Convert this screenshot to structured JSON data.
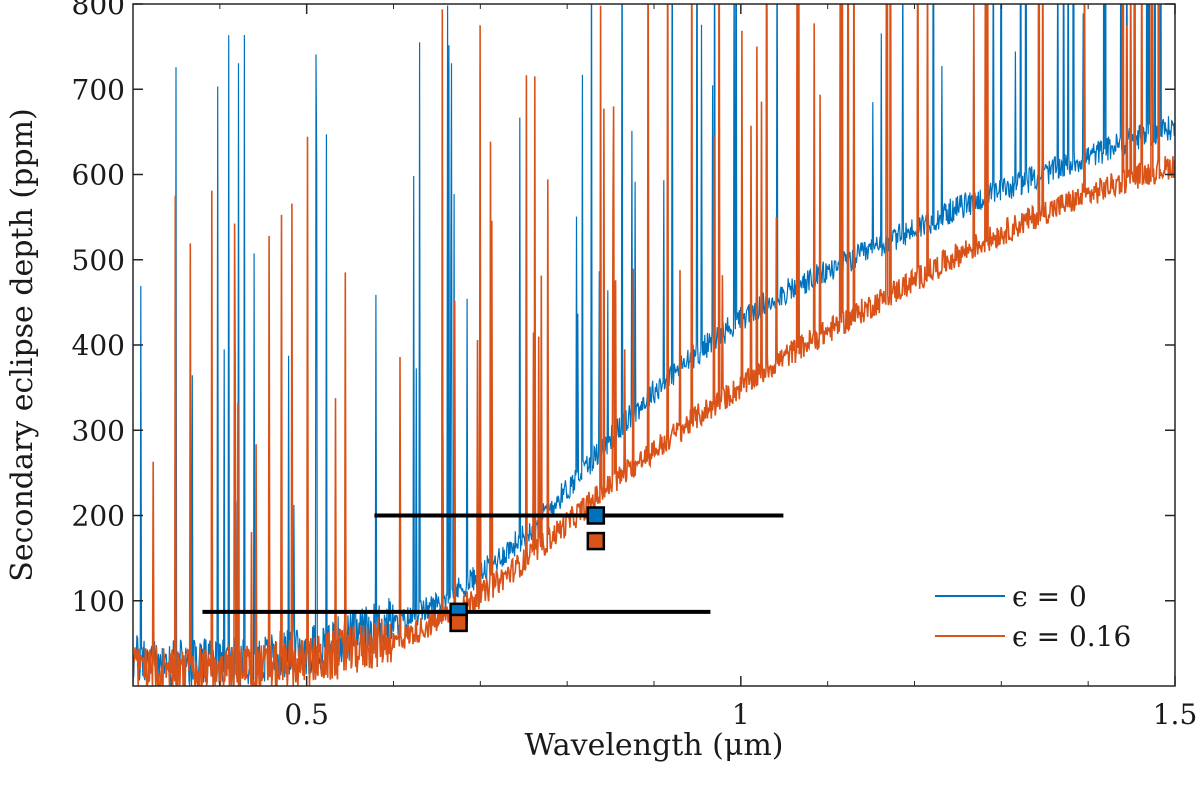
{
  "chart_data": {
    "type": "line",
    "title": "",
    "xlabel": "Wavelength (μm)",
    "ylabel": "Secondary eclipse depth (ppm)",
    "xlim": [
      0.3,
      1.5
    ],
    "ylim": [
      0,
      800
    ],
    "xticks": [
      0.5,
      1,
      1.5
    ],
    "xtick_labels": [
      "0.5",
      "1",
      "1.5"
    ],
    "yticks": [
      100,
      200,
      300,
      400,
      500,
      600,
      700,
      800
    ],
    "ytick_labels": [
      "100",
      "200",
      "300",
      "400",
      "500",
      "600",
      "700",
      "800"
    ],
    "legend_position": "bottom-right",
    "series": [
      {
        "name": "ϵ = 0",
        "color": "#0072BD",
        "x": [
          0.3,
          0.35,
          0.4,
          0.45,
          0.5,
          0.55,
          0.6,
          0.65,
          0.7,
          0.75,
          0.8,
          0.85,
          0.9,
          0.95,
          1.0,
          1.05,
          1.1,
          1.15,
          1.2,
          1.25,
          1.3,
          1.35,
          1.4,
          1.45,
          1.5
        ],
        "y": [
          20,
          12,
          15,
          20,
          30,
          45,
          65,
          90,
          125,
          170,
          225,
          285,
          340,
          385,
          425,
          455,
          480,
          505,
          530,
          555,
          575,
          595,
          615,
          635,
          650
        ]
      },
      {
        "name": "ϵ = 0.16",
        "color": "#D95319",
        "x": [
          0.3,
          0.35,
          0.4,
          0.45,
          0.5,
          0.55,
          0.6,
          0.65,
          0.7,
          0.75,
          0.8,
          0.85,
          0.9,
          0.95,
          1.0,
          1.05,
          1.1,
          1.15,
          1.2,
          1.25,
          1.3,
          1.35,
          1.4,
          1.45,
          1.5
        ],
        "y": [
          8,
          5,
          6,
          8,
          15,
          28,
          45,
          70,
          100,
          140,
          185,
          230,
          270,
          310,
          345,
          380,
          410,
          440,
          470,
          500,
          525,
          550,
          570,
          590,
          605
        ]
      }
    ],
    "binned_points": [
      {
        "series": "ϵ = 0",
        "x": 0.833,
        "y": 200,
        "xerr": [
          0.578,
          1.049
        ],
        "color": "#0072BD"
      },
      {
        "series": "ϵ = 0.16",
        "x": 0.833,
        "y": 170,
        "color": "#D95319"
      },
      {
        "series": "ϵ = 0",
        "x": 0.675,
        "y": 87,
        "xerr": [
          0.38,
          0.965
        ],
        "color": "#0072BD"
      },
      {
        "series": "ϵ = 0.16",
        "x": 0.675,
        "y": 74,
        "color": "#D95319"
      }
    ]
  }
}
